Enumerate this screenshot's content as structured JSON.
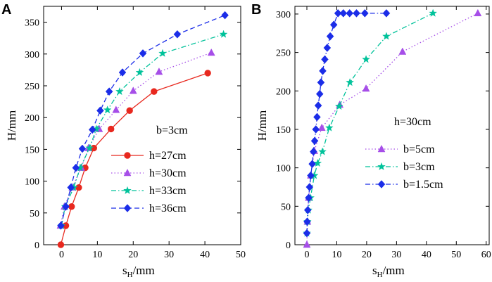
{
  "chart_data": [
    {
      "panel": "A",
      "type": "line",
      "xlabel": "s",
      "xlabel_sub": "H",
      "xlabel_unit": "/mm",
      "ylabel": "H/mm",
      "xlim": [
        -5,
        50
      ],
      "ylim": [
        0,
        375
      ],
      "xticks": [
        0,
        10,
        20,
        30,
        40,
        50
      ],
      "yticks": [
        0,
        50,
        100,
        150,
        200,
        250,
        300,
        350
      ],
      "annotation": "b=3cm",
      "legend_position": "lower-right",
      "series": [
        {
          "name": "h=27cm",
          "color": "#e8281e",
          "marker": "circle",
          "line": "solid",
          "x": [
            -0.2,
            1.2,
            2.8,
            4.8,
            6.6,
            9.0,
            13.8,
            19.0,
            25.8,
            40.8
          ],
          "y": [
            0,
            30,
            60,
            90,
            121,
            152,
            182,
            211,
            241,
            270
          ]
        },
        {
          "name": "h=30cm",
          "color": "#a64ee8",
          "marker": "triangle",
          "line": "dotted",
          "x": [
            -0.3,
            0.8,
            3.0,
            5.5,
            7.5,
            10.5,
            15.2,
            20.0,
            27.2,
            41.8
          ],
          "y": [
            30,
            60,
            90,
            121,
            152,
            182,
            212,
            242,
            272,
            302
          ]
        },
        {
          "name": "h=33cm",
          "color": "#00c29a",
          "marker": "star",
          "line": "dashdot",
          "x": [
            0.0,
            1.0,
            3.4,
            5.2,
            7.8,
            9.7,
            12.8,
            16.2,
            21.8,
            28.2,
            45.2
          ],
          "y": [
            30,
            60,
            90,
            121,
            152,
            182,
            212,
            241,
            271,
            301,
            331
          ]
        },
        {
          "name": "h=36cm",
          "color": "#1b2de8",
          "marker": "diamond",
          "line": "dashed",
          "x": [
            -0.2,
            1.2,
            2.6,
            4.0,
            5.8,
            8.6,
            10.8,
            13.3,
            17.0,
            22.7,
            32.3,
            45.6
          ],
          "y": [
            30,
            60,
            90,
            121,
            151,
            181,
            211,
            241,
            271,
            301,
            331,
            361
          ]
        }
      ]
    },
    {
      "panel": "B",
      "type": "line",
      "xlabel": "s",
      "xlabel_sub": "H",
      "xlabel_unit": "/mm",
      "ylabel": "H/mm",
      "xlim": [
        -4,
        61
      ],
      "ylim": [
        0,
        310
      ],
      "xticks": [
        0,
        10,
        20,
        30,
        40,
        50,
        60
      ],
      "yticks": [
        0,
        50,
        100,
        150,
        200,
        250,
        300
      ],
      "annotation": "h=30cm",
      "legend_position": "lower-right",
      "series": [
        {
          "name": "b=5cm",
          "color": "#a64ee8",
          "marker": "triangle",
          "line": "dotted",
          "x": [
            0.0,
            0.2,
            0.6,
            1.3,
            2.5,
            5.0,
            11.0,
            19.8,
            32.0,
            57.2
          ],
          "y": [
            0,
            30,
            61,
            90,
            122,
            152,
            182,
            203,
            251,
            301
          ]
        },
        {
          "name": "b=3cm",
          "color": "#00c29a",
          "marker": "star",
          "line": "dashdot",
          "x": [
            0.0,
            0.2,
            0.5,
            1.2,
            2.5,
            3.6,
            5.2,
            7.5,
            10.8,
            14.4,
            19.8,
            26.6,
            42.2
          ],
          "y": [
            15,
            30,
            45,
            61,
            90,
            106,
            121,
            152,
            180,
            211,
            241,
            271,
            301
          ]
        },
        {
          "name": "b=1.5cm",
          "color": "#1b2de8",
          "marker": "diamond",
          "line": "dashdot",
          "x": [
            0.0,
            0.1,
            0.3,
            0.6,
            0.9,
            1.3,
            1.8,
            2.2,
            2.6,
            3.0,
            3.4,
            3.8,
            4.3,
            4.7,
            5.3,
            6.0,
            6.8,
            7.8,
            9.0,
            10.4,
            12.2,
            14.3,
            16.6,
            19.4,
            26.6
          ],
          "y": [
            15,
            30,
            45,
            61,
            75,
            90,
            105,
            121,
            135,
            150,
            166,
            181,
            196,
            211,
            226,
            241,
            256,
            271,
            286,
            301,
            301,
            301,
            301,
            301,
            301
          ]
        }
      ]
    }
  ]
}
